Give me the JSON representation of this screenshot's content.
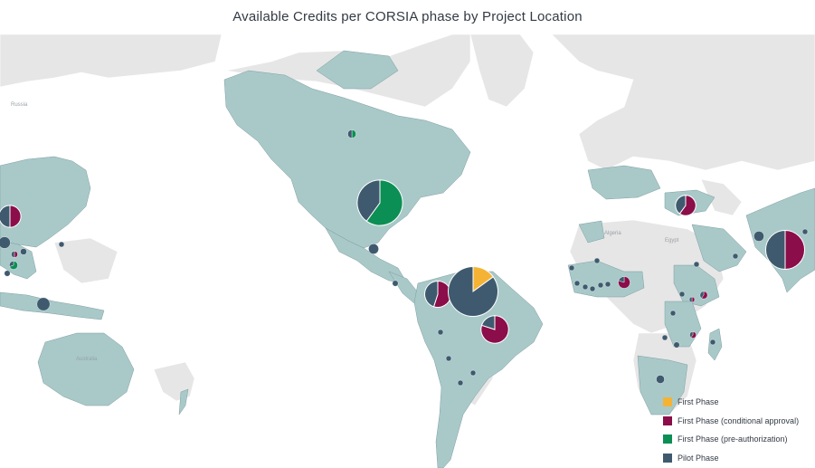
{
  "title": "Available Credits per CORSIA phase by Project Location",
  "colors": {
    "first_phase": "#f5b335",
    "first_phase_conditional": "#8b0d49",
    "first_phase_preauth": "#0c8f54",
    "pilot_phase": "#3f5a6e",
    "project_country": "#a9c9c9",
    "other_land": "#e6e6e6",
    "ocean": "#ffffff"
  },
  "legend": [
    {
      "label": "First Phase",
      "color": "#f5b335"
    },
    {
      "label": "First Phase (conditional approval)",
      "color": "#8b0d49"
    },
    {
      "label": "First Phase (pre-authorization)",
      "color": "#0c8f54"
    },
    {
      "label": "Pilot Phase",
      "color": "#3f5a6e"
    }
  ],
  "map_labels": [
    "Russia",
    "Algeria",
    "Egypt",
    "Australia"
  ],
  "pies": [
    {
      "location": "United States",
      "first_phase": 0,
      "conditional": 0,
      "preauth": 0.6,
      "pilot": 0.4,
      "size": 3
    },
    {
      "location": "Canada",
      "first_phase": 0,
      "conditional": 0,
      "preauth": 0.5,
      "pilot": 0.5,
      "size": 0.1
    },
    {
      "location": "Mexico",
      "first_phase": 0,
      "conditional": 0,
      "preauth": 0,
      "pilot": 1,
      "size": 0.15
    },
    {
      "location": "Guatemala",
      "first_phase": 0,
      "conditional": 0,
      "preauth": 0,
      "pilot": 1,
      "size": 0.05
    },
    {
      "location": "Colombia",
      "first_phase": 0,
      "conditional": 0.55,
      "preauth": 0,
      "pilot": 0.45,
      "size": 1
    },
    {
      "location": "Venezuela / Guiana region",
      "first_phase": 0.15,
      "conditional": 0,
      "preauth": 0,
      "pilot": 0.85,
      "size": 3.6
    },
    {
      "location": "Brazil",
      "first_phase": 0,
      "conditional": 0.8,
      "preauth": 0,
      "pilot": 0.2,
      "size": 1.1
    },
    {
      "location": "Peru",
      "first_phase": 0,
      "conditional": 0,
      "preauth": 0,
      "pilot": 1,
      "size": 0.04
    },
    {
      "location": "Bolivia",
      "first_phase": 0,
      "conditional": 0,
      "preauth": 0,
      "pilot": 1,
      "size": 0.04
    },
    {
      "location": "Paraguay",
      "first_phase": 0,
      "conditional": 0,
      "preauth": 0,
      "pilot": 1,
      "size": 0.04
    },
    {
      "location": "Uruguay",
      "first_phase": 0,
      "conditional": 0,
      "preauth": 0,
      "pilot": 1,
      "size": 0.04
    },
    {
      "location": "China",
      "first_phase": 0,
      "conditional": 0.5,
      "preauth": 0,
      "pilot": 0.5,
      "size": 0.7
    },
    {
      "location": "Myanmar",
      "first_phase": 0,
      "conditional": 0,
      "preauth": 0,
      "pilot": 1,
      "size": 0.2
    },
    {
      "location": "Laos",
      "first_phase": 0,
      "conditional": 0,
      "preauth": 0,
      "pilot": 1,
      "size": 0.06
    },
    {
      "location": "Taiwan",
      "first_phase": 0,
      "conditional": 0,
      "preauth": 0,
      "pilot": 1,
      "size": 0.04
    },
    {
      "location": "Vietnam",
      "first_phase": 0,
      "conditional": 0.5,
      "preauth": 0,
      "pilot": 0.5,
      "size": 0.06
    },
    {
      "location": "Cambodia",
      "first_phase": 0,
      "conditional": 0,
      "preauth": 0.7,
      "pilot": 0.3,
      "size": 0.1
    },
    {
      "location": "Thailand",
      "first_phase": 0,
      "conditional": 0,
      "preauth": 0,
      "pilot": 1,
      "size": 0.05
    },
    {
      "location": "Indonesia",
      "first_phase": 0,
      "conditional": 0,
      "preauth": 0,
      "pilot": 1,
      "size": 0.25
    },
    {
      "location": "Turkey",
      "first_phase": 0,
      "conditional": 0.6,
      "preauth": 0,
      "pilot": 0.4,
      "size": 0.6
    },
    {
      "location": "Pakistan",
      "first_phase": 0,
      "conditional": 0,
      "preauth": 0,
      "pilot": 1,
      "size": 0.15
    },
    {
      "location": "India",
      "first_phase": 0,
      "conditional": 0.5,
      "preauth": 0,
      "pilot": 0.5,
      "size": 2.2
    },
    {
      "location": "Bangladesh",
      "first_phase": 0,
      "conditional": 0,
      "preauth": 0,
      "pilot": 1,
      "size": 0.04
    },
    {
      "location": "United Arab Emirates",
      "first_phase": 0,
      "conditional": 0,
      "preauth": 0,
      "pilot": 1,
      "size": 0.04
    },
    {
      "location": "Senegal",
      "first_phase": 0,
      "conditional": 0,
      "preauth": 0,
      "pilot": 1,
      "size": 0.04
    },
    {
      "location": "Mali",
      "first_phase": 0,
      "conditional": 0,
      "preauth": 0,
      "pilot": 1,
      "size": 0.04
    },
    {
      "location": "Guinea",
      "first_phase": 0,
      "conditional": 0,
      "preauth": 0,
      "pilot": 1,
      "size": 0.04
    },
    {
      "location": "Sierra Leone",
      "first_phase": 0,
      "conditional": 0,
      "preauth": 0,
      "pilot": 1,
      "size": 0.04
    },
    {
      "location": "Liberia",
      "first_phase": 0,
      "conditional": 0,
      "preauth": 0,
      "pilot": 1,
      "size": 0.04
    },
    {
      "location": "Cote d'Ivoire",
      "first_phase": 0,
      "conditional": 0,
      "preauth": 0,
      "pilot": 1,
      "size": 0.04
    },
    {
      "location": "Ghana",
      "first_phase": 0,
      "conditional": 0,
      "preauth": 0,
      "pilot": 1,
      "size": 0.04
    },
    {
      "location": "Nigeria",
      "first_phase": 0,
      "conditional": 0.8,
      "preauth": 0,
      "pilot": 0.2,
      "size": 0.2
    },
    {
      "location": "Ethiopia",
      "first_phase": 0,
      "conditional": 0,
      "preauth": 0,
      "pilot": 1,
      "size": 0.04
    },
    {
      "location": "Kenya",
      "first_phase": 0,
      "conditional": 0.6,
      "preauth": 0,
      "pilot": 0.4,
      "size": 0.08
    },
    {
      "location": "Uganda",
      "first_phase": 0,
      "conditional": 0,
      "preauth": 0,
      "pilot": 1,
      "size": 0.04
    },
    {
      "location": "Rwanda",
      "first_phase": 0,
      "conditional": 0.5,
      "preauth": 0,
      "pilot": 0.5,
      "size": 0.04
    },
    {
      "location": "Tanzania",
      "first_phase": 0,
      "conditional": 0,
      "preauth": 0,
      "pilot": 1,
      "size": 0.04
    },
    {
      "location": "Zambia",
      "first_phase": 0,
      "conditional": 0,
      "preauth": 0,
      "pilot": 1,
      "size": 0.04
    },
    {
      "location": "Zimbabwe",
      "first_phase": 0,
      "conditional": 0,
      "preauth": 0,
      "pilot": 1,
      "size": 0.05
    },
    {
      "location": "Mozambique",
      "first_phase": 0,
      "conditional": 0.6,
      "preauth": 0,
      "pilot": 0.4,
      "size": 0.06
    },
    {
      "location": "Madagascar",
      "first_phase": 0,
      "conditional": 0,
      "preauth": 0,
      "pilot": 1,
      "size": 0.04
    },
    {
      "location": "South Africa",
      "first_phase": 0,
      "conditional": 0,
      "preauth": 0,
      "pilot": 1,
      "size": 0.1
    }
  ]
}
